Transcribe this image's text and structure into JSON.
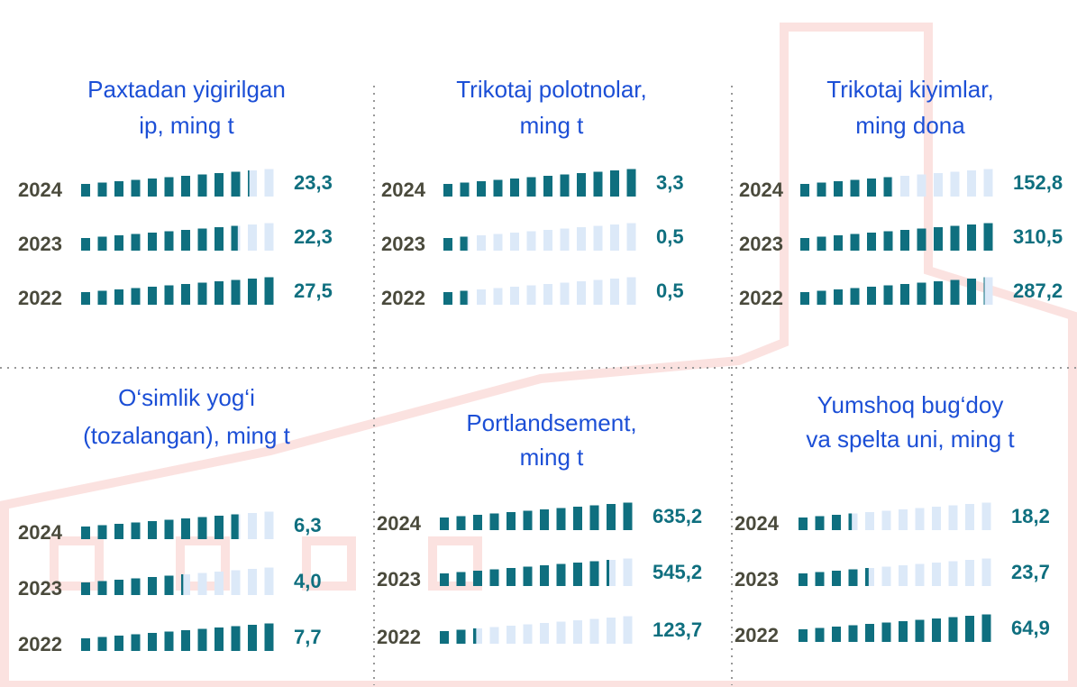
{
  "chart_data": [
    {
      "type": "pictogram",
      "title": [
        "Paxtadan yigirilgan",
        "ip, ming t"
      ],
      "categories": [
        "2024",
        "2023",
        "2022"
      ],
      "values": [
        23.3,
        22.3,
        27.5
      ],
      "value_labels": [
        "23,3",
        "22,3",
        "27,5"
      ],
      "color": "#0f6f7f",
      "empty_color": "#dce9f8"
    },
    {
      "type": "pictogram",
      "title": [
        "Trikotaj polotnolar,",
        "ming t"
      ],
      "categories": [
        "2024",
        "2023",
        "2022"
      ],
      "values": [
        3.3,
        0.5,
        0.5
      ],
      "value_labels": [
        "3,3",
        "0,5",
        "0,5"
      ],
      "color": "#0f6f7f",
      "empty_color": "#dce9f8"
    },
    {
      "type": "pictogram",
      "title": [
        "Trikotaj kiyimlar,",
        "ming dona"
      ],
      "categories": [
        "2024",
        "2023",
        "2022"
      ],
      "values": [
        152.8,
        310.5,
        287.2
      ],
      "value_labels": [
        "152,8",
        "310,5",
        "287,2"
      ],
      "color": "#0f6f7f",
      "empty_color": "#dce9f8"
    },
    {
      "type": "pictogram",
      "title": [
        "O‘simlik yog‘i",
        "(tozalangan), ming t"
      ],
      "categories": [
        "2024",
        "2023",
        "2022"
      ],
      "values": [
        6.3,
        4.0,
        7.7
      ],
      "value_labels": [
        "6,3",
        "4,0",
        "7,7"
      ],
      "color": "#0f6f7f",
      "empty_color": "#dce9f8"
    },
    {
      "type": "pictogram",
      "title": [
        "Portlandsement,",
        "ming t"
      ],
      "categories": [
        "2024",
        "2023",
        "2022"
      ],
      "values": [
        635.2,
        545.2,
        123.7
      ],
      "value_labels": [
        "635,2",
        "545,2",
        "123,7"
      ],
      "color": "#0f6f7f",
      "empty_color": "#dce9f8"
    },
    {
      "type": "pictogram",
      "title": [
        "Yumshoq bug‘doy",
        "va spelta uni, ming t"
      ],
      "categories": [
        "2024",
        "2023",
        "2022"
      ],
      "values": [
        18.2,
        23.7,
        64.9
      ],
      "value_labels": [
        "18,2",
        "23,7",
        "64,9"
      ],
      "color": "#0f6f7f",
      "empty_color": "#dce9f8"
    }
  ]
}
